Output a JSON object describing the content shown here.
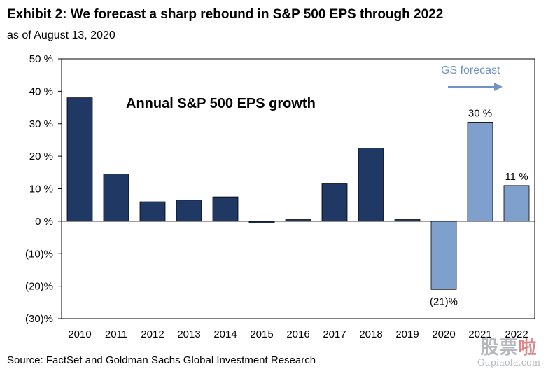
{
  "header": {
    "title": "Exhibit 2: We forecast a sharp rebound in S&P 500 EPS through 2022",
    "subtitle": "as of August 13, 2020"
  },
  "footer": {
    "source": "Source: FactSet and Goldman Sachs Global Investment Research"
  },
  "watermark": {
    "main_a": "股票",
    "main_b": "啦",
    "sub": "Gupiaola.com"
  },
  "colors": {
    "actual": "#1f3864",
    "forecast": "#7f9fcc",
    "arrow": "#6f93c4",
    "frame": "#000000"
  },
  "chart_data": {
    "type": "bar",
    "title": "Annual S&P 500 EPS growth",
    "categories": [
      "2010",
      "2011",
      "2012",
      "2013",
      "2014",
      "2015",
      "2016",
      "2017",
      "2018",
      "2019",
      "2020",
      "2021",
      "2022"
    ],
    "values": [
      38,
      14.5,
      6,
      6.5,
      7.5,
      -0.5,
      0.5,
      11.5,
      22.5,
      0.5,
      -21,
      30.5,
      11
    ],
    "forecast": [
      false,
      false,
      false,
      false,
      false,
      false,
      false,
      false,
      false,
      false,
      true,
      true,
      true
    ],
    "data_labels": {
      "10": "(21)%",
      "11": "30 %",
      "12": "11 %"
    },
    "ylim": [
      -30,
      50
    ],
    "yticks": [
      50,
      40,
      30,
      20,
      10,
      0,
      -10,
      -20,
      -30
    ],
    "ytick_labels": [
      "50 %",
      "40 %",
      "30 %",
      "20 %",
      "10 %",
      "0 %",
      "(10)%",
      "(20)%",
      "(30)%"
    ],
    "xlabel": "",
    "ylabel": "",
    "annotation": "GS forecast",
    "grid": false
  }
}
